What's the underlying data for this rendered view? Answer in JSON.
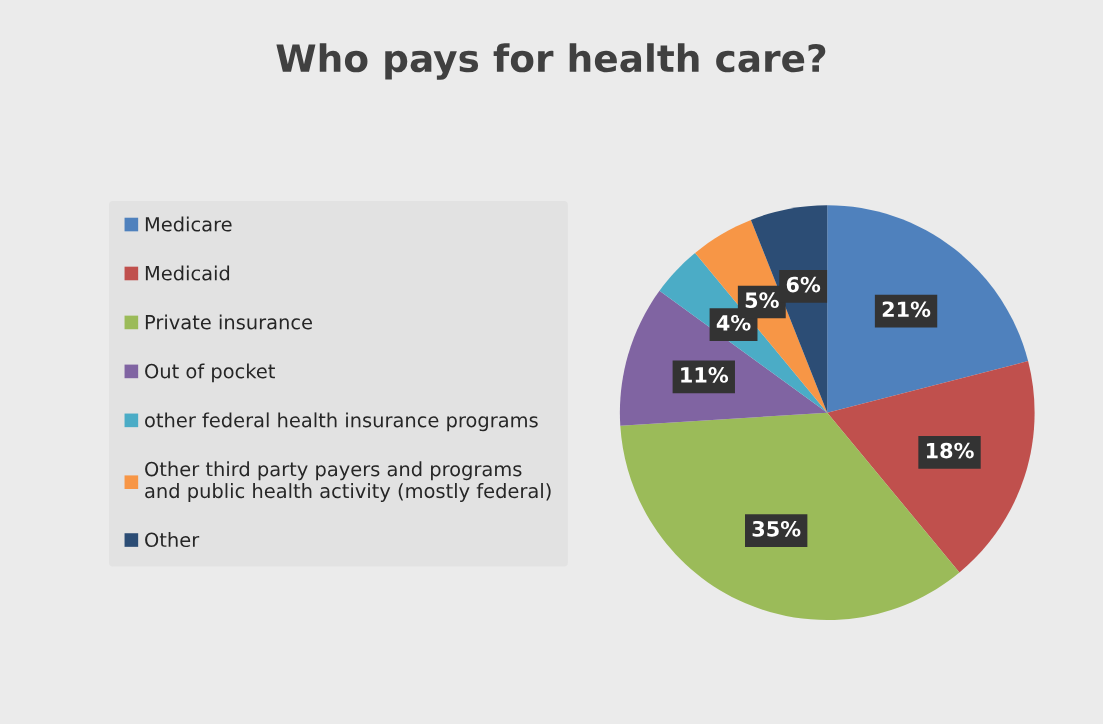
{
  "chart_data": {
    "type": "pie",
    "title": "Who pays for health care?",
    "categories": [
      "Medicare",
      "Medicaid",
      "Private insurance",
      "Out of pocket",
      "other federal health insurance programs",
      "Other third party payers and programs\nand public health activity (mostly federal)",
      "Other"
    ],
    "values": [
      21,
      18,
      35,
      11,
      4,
      5,
      6
    ],
    "value_labels": [
      "21%",
      "18%",
      "35%",
      "11%",
      "4%",
      "5%",
      "6%"
    ],
    "colors": [
      "#4f81bd",
      "#c0504d",
      "#9bbb59",
      "#8064a2",
      "#4bacc6",
      "#f79646",
      "#2c4d75"
    ],
    "legend": "left"
  }
}
